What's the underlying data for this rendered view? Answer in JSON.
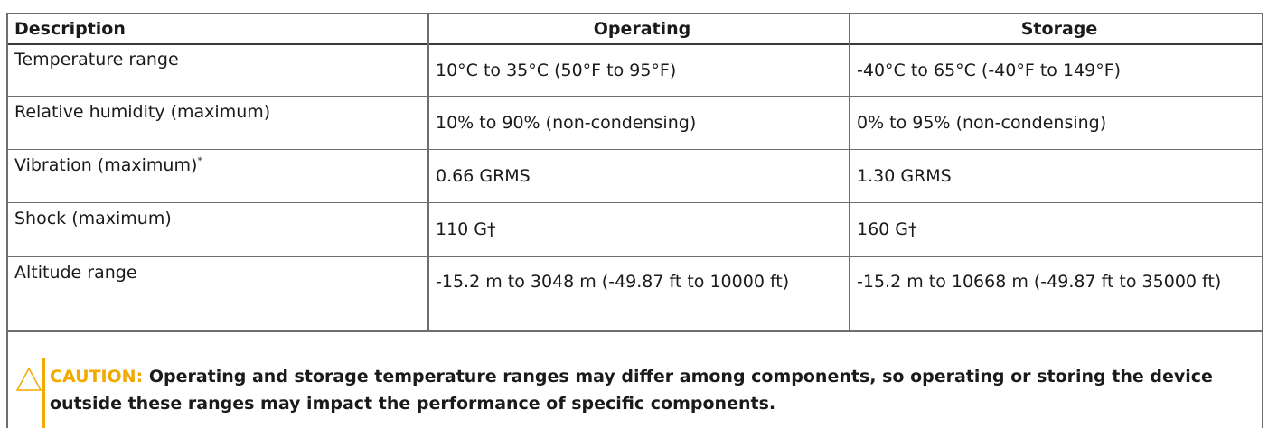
{
  "table": {
    "headers": [
      "Description",
      "Operating",
      "Storage"
    ],
    "rows": [
      {
        "description": "Temperature range",
        "operating": "10°C to 35°C (50°F to 95°F)",
        "storage": "-40°C to 65°C (-40°F to 149°F)"
      },
      {
        "description": "Relative humidity (maximum)",
        "operating": "10% to 90% (non-condensing)",
        "storage": "0% to 95% (non-condensing)"
      },
      {
        "description": "Vibration (maximum)",
        "description_mark": "*",
        "operating": "0.66 GRMS",
        "storage": "1.30 GRMS"
      },
      {
        "description": "Shock (maximum)",
        "operating": "110 G†",
        "storage": "160 G†"
      },
      {
        "description": "Altitude range",
        "operating": "-15.2 m to 3048 m (-49.87 ft to 10000 ft)",
        "storage": "-15.2 m to 10668 m (-49.87 ft to 35000 ft)"
      }
    ]
  },
  "caution": {
    "label": "CAUTION:",
    "text": "Operating and storage temperature ranges may differ among components, so operating or storing the device outside these ranges may impact the performance of specific components.",
    "icon": "warning-triangle-icon",
    "accent_color": "#f2a900"
  }
}
